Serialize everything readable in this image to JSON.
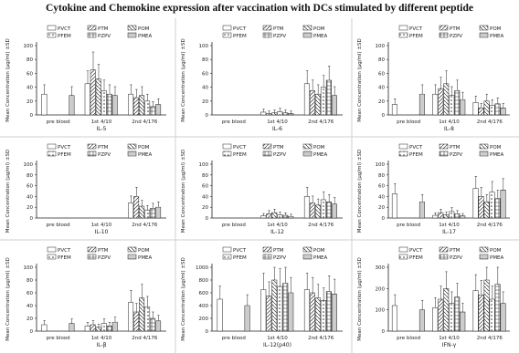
{
  "title": "Cytokine and Chemokine expression after vaccination with DCs stimulated by different peptide",
  "legend_labels": [
    "PVCT",
    "PTM",
    "POM",
    "PFEM",
    "PZPV",
    "PMEA"
  ],
  "colors": {
    "frame": "#cfcfcf",
    "ink": "#222222"
  },
  "chart_data": [
    {
      "type": "bar",
      "ylabel": "Mean Concentration (µg/ml) ±SD",
      "xlabel": "IL-5",
      "categories": [
        "pre blood",
        "1st 4/10",
        "2nd 4/176"
      ],
      "ylim": [
        0,
        100
      ],
      "ticks": [
        "0",
        "20",
        "40",
        "60",
        "80",
        "100"
      ],
      "series": [
        {
          "name": "PVCT",
          "values": [
            30,
            45,
            30
          ]
        },
        {
          "name": "PTM",
          "values": [
            0,
            65,
            25
          ]
        },
        {
          "name": "POM",
          "values": [
            0,
            52,
            28
          ]
        },
        {
          "name": "PFEM",
          "values": [
            0,
            35,
            20
          ]
        },
        {
          "name": "PZPV",
          "values": [
            0,
            30,
            12
          ]
        },
        {
          "name": "PMEA",
          "values": [
            28,
            28,
            15
          ]
        }
      ]
    },
    {
      "type": "bar",
      "ylabel": "Mean Concentration (µg/ml) ±SD",
      "xlabel": "IL-6",
      "categories": [
        "pre blood",
        "1st 4/10",
        "2nd 4/176"
      ],
      "ylim": [
        0,
        100
      ],
      "ticks": [
        "0",
        "20",
        "40",
        "60",
        "80",
        "100"
      ],
      "series": [
        {
          "name": "PVCT",
          "values": [
            0,
            4,
            45
          ]
        },
        {
          "name": "PTM",
          "values": [
            0,
            2,
            35
          ]
        },
        {
          "name": "POM",
          "values": [
            0,
            3,
            30
          ]
        },
        {
          "name": "PFEM",
          "values": [
            0,
            5,
            40
          ]
        },
        {
          "name": "PZPV",
          "values": [
            0,
            3,
            50
          ]
        },
        {
          "name": "PMEA",
          "values": [
            0,
            2,
            28
          ]
        }
      ]
    },
    {
      "type": "bar",
      "ylabel": "Mean Concentration (µg/ml) ±SD",
      "xlabel": "IL-8",
      "categories": [
        "pre blood",
        "1st 4/10",
        "2nd 4/176"
      ],
      "ylim": [
        0,
        100
      ],
      "ticks": [
        "0",
        "20",
        "40",
        "60",
        "80",
        "100"
      ],
      "series": [
        {
          "name": "PVCT",
          "values": [
            15,
            30,
            18
          ]
        },
        {
          "name": "PTM",
          "values": [
            0,
            38,
            10
          ]
        },
        {
          "name": "POM",
          "values": [
            0,
            45,
            20
          ]
        },
        {
          "name": "PFEM",
          "values": [
            0,
            28,
            14
          ]
        },
        {
          "name": "PZPV",
          "values": [
            0,
            35,
            16
          ]
        },
        {
          "name": "PMEA",
          "values": [
            30,
            22,
            10
          ]
        }
      ]
    },
    {
      "type": "bar",
      "ylabel": "Mean Concentration (µg/ml) ±SD",
      "xlabel": "IL-10",
      "categories": [
        "pre blood",
        "1st 4/10",
        "2nd 4/176"
      ],
      "ylim": [
        0,
        100
      ],
      "ticks": [
        "0",
        "20",
        "40",
        "60",
        "80",
        "100"
      ],
      "series": [
        {
          "name": "PVCT",
          "values": [
            0,
            0,
            28
          ]
        },
        {
          "name": "PTM",
          "values": [
            0,
            0,
            40
          ]
        },
        {
          "name": "POM",
          "values": [
            0,
            0,
            22
          ]
        },
        {
          "name": "PFEM",
          "values": [
            0,
            0,
            15
          ]
        },
        {
          "name": "PZPV",
          "values": [
            0,
            0,
            18
          ]
        },
        {
          "name": "PMEA",
          "values": [
            0,
            0,
            20
          ]
        }
      ]
    },
    {
      "type": "bar",
      "ylabel": "Mean Concentration (µg/ml) ±SD",
      "xlabel": "IL-12",
      "categories": [
        "pre blood",
        "1st 4/10",
        "2nd 4/176"
      ],
      "ylim": [
        0,
        100
      ],
      "ticks": [
        "0",
        "20",
        "40",
        "60",
        "80",
        "100"
      ],
      "series": [
        {
          "name": "PVCT",
          "values": [
            0,
            4,
            40
          ]
        },
        {
          "name": "PTM",
          "values": [
            0,
            8,
            28
          ]
        },
        {
          "name": "POM",
          "values": [
            0,
            10,
            24
          ]
        },
        {
          "name": "PFEM",
          "values": [
            0,
            6,
            34
          ]
        },
        {
          "name": "PZPV",
          "values": [
            0,
            5,
            30
          ]
        },
        {
          "name": "PMEA",
          "values": [
            0,
            3,
            26
          ]
        }
      ]
    },
    {
      "type": "bar",
      "ylabel": "Mean Concentration (µg/ml) ±SD",
      "xlabel": "IL-17",
      "categories": [
        "pre blood",
        "1st 4/10",
        "2nd 4/176"
      ],
      "ylim": [
        0,
        100
      ],
      "ticks": [
        "0",
        "20",
        "40",
        "60",
        "80",
        "100"
      ],
      "series": [
        {
          "name": "PVCT",
          "values": [
            45,
            5,
            55
          ]
        },
        {
          "name": "PTM",
          "values": [
            0,
            10,
            40
          ]
        },
        {
          "name": "POM",
          "values": [
            0,
            6,
            30
          ]
        },
        {
          "name": "PFEM",
          "values": [
            0,
            12,
            48
          ]
        },
        {
          "name": "PZPV",
          "values": [
            0,
            8,
            36
          ]
        },
        {
          "name": "PMEA",
          "values": [
            30,
            4,
            52
          ]
        }
      ]
    },
    {
      "type": "bar",
      "ylabel": "Mean Concentration (µg/ml) ±SD",
      "xlabel": "IL-β",
      "categories": [
        "pre blood",
        "1st 4/10",
        "2nd 4/176"
      ],
      "ylim": [
        0,
        100
      ],
      "ticks": [
        "0",
        "20",
        "40",
        "60",
        "80",
        "100"
      ],
      "series": [
        {
          "name": "PVCT",
          "values": [
            10,
            8,
            45
          ]
        },
        {
          "name": "PTM",
          "values": [
            0,
            10,
            30
          ]
        },
        {
          "name": "POM",
          "values": [
            0,
            6,
            52
          ]
        },
        {
          "name": "PFEM",
          "values": [
            0,
            12,
            38
          ]
        },
        {
          "name": "PZPV",
          "values": [
            0,
            8,
            20
          ]
        },
        {
          "name": "PMEA",
          "values": [
            12,
            14,
            16
          ]
        }
      ]
    },
    {
      "type": "bar",
      "ylabel": "Mean Concentration (µg/ml) ±SD",
      "xlabel": "IL-12(p40)",
      "categories": [
        "pre blood",
        "1st 4/10",
        "2nd 4/176"
      ],
      "ylim": [
        0,
        1000
      ],
      "ticks": [
        "0",
        "200",
        "400",
        "600",
        "800",
        "1000"
      ],
      "series": [
        {
          "name": "PVCT",
          "values": [
            500,
            650,
            650
          ]
        },
        {
          "name": "PTM",
          "values": [
            0,
            550,
            600
          ]
        },
        {
          "name": "POM",
          "values": [
            0,
            800,
            520
          ]
        },
        {
          "name": "PFEM",
          "values": [
            0,
            700,
            480
          ]
        },
        {
          "name": "PZPV",
          "values": [
            0,
            750,
            620
          ]
        },
        {
          "name": "PMEA",
          "values": [
            400,
            600,
            580
          ]
        }
      ]
    },
    {
      "type": "bar",
      "ylabel": "Mean Concentration (µg/ml) ±SD",
      "xlabel": "IFN-γ",
      "categories": [
        "pre blood",
        "1st 4/10",
        "2nd 4/176"
      ],
      "ylim": [
        0,
        300
      ],
      "ticks": [
        "0",
        "100",
        "200",
        "300"
      ],
      "series": [
        {
          "name": "PVCT",
          "values": [
            120,
            110,
            190
          ]
        },
        {
          "name": "PTM",
          "values": [
            0,
            150,
            170
          ]
        },
        {
          "name": "POM",
          "values": [
            0,
            200,
            240
          ]
        },
        {
          "name": "PFEM",
          "values": [
            0,
            130,
            150
          ]
        },
        {
          "name": "PZPV",
          "values": [
            0,
            160,
            220
          ]
        },
        {
          "name": "PMEA",
          "values": [
            100,
            90,
            130
          ]
        }
      ]
    }
  ]
}
